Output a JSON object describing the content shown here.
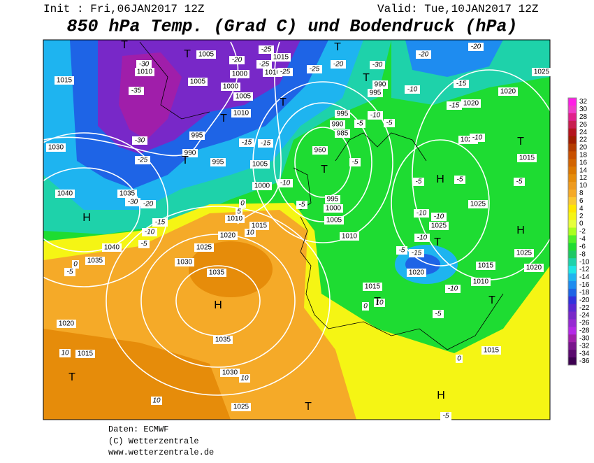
{
  "header": {
    "init": "Init : Fri,06JAN2017 12Z",
    "valid": "Valid: Tue,10JAN2017 12Z",
    "title": "850 hPa Temp. (Grad C) und Bodendruck (hPa)"
  },
  "colorbar": {
    "ticks": [
      32,
      30,
      28,
      26,
      24,
      22,
      20,
      18,
      16,
      14,
      12,
      10,
      8,
      6,
      4,
      2,
      0,
      -2,
      -4,
      -6,
      -8,
      -10,
      -12,
      -14,
      -16,
      -18,
      -20,
      -22,
      -24,
      -26,
      -28,
      -30,
      -32,
      -34,
      -36
    ],
    "colors": [
      "#ff1ee6",
      "#f03cc8",
      "#e0208c",
      "#c81e50",
      "#b4141e",
      "#a01e00",
      "#b43c00",
      "#c85000",
      "#d26400",
      "#dc7800",
      "#e68c0a",
      "#ee9a1e",
      "#f5aa28",
      "#fac832",
      "#ffe600",
      "#f5f514",
      "#e6ff3c",
      "#aaff1e",
      "#50f028",
      "#1edc32",
      "#1ec864",
      "#1ed2aa",
      "#1ee6e6",
      "#1eb4f0",
      "#1e8cf0",
      "#1e64e6",
      "#3232dc",
      "#5a28d2",
      "#7828c8",
      "#962ad2",
      "#b428e6",
      "#a01eaa",
      "#78148c",
      "#5a0a6e",
      "#3c0050"
    ]
  },
  "map": {
    "pressure_labels": [
      1005,
      1015,
      1010,
      1015,
      1005,
      1010,
      1000,
      1000,
      1005,
      995,
      990,
      1010,
      995,
      990,
      995,
      1005,
      1000,
      1030,
      1040,
      1035,
      1040,
      1035,
      1030,
      1025,
      1020,
      1010,
      1015,
      995,
      990,
      985,
      960,
      995,
      1000,
      1005,
      1010,
      1025,
      1025,
      1025,
      1020,
      1020,
      1020,
      1015,
      1010,
      1015,
      1015,
      1025,
      1020,
      1035,
      1035,
      1030,
      1025,
      1020,
      1015,
      1015,
      1025
    ],
    "temp_labels": [
      -30,
      -35,
      -30,
      -25,
      -30,
      -20,
      -15,
      -10,
      -5,
      0,
      -5,
      0,
      5,
      -20,
      -25,
      -25,
      -25,
      -25,
      -20,
      -30,
      -10,
      -20,
      -20,
      -15,
      -15,
      -10,
      -10,
      -5,
      -5,
      -5,
      -5,
      -10,
      -15,
      -15,
      -10,
      -10,
      -10,
      -15,
      -5,
      -10,
      -5,
      -5,
      -5,
      -5,
      10,
      10,
      10,
      10,
      0,
      0,
      -5,
      10
    ],
    "centers": [
      "H",
      "H",
      "H",
      "H",
      "H",
      "T",
      "T",
      "T",
      "T",
      "T",
      "T",
      "T",
      "T",
      "T",
      "T",
      "T",
      "T",
      "T",
      "T"
    ]
  },
  "footer": {
    "lines": [
      "Daten: ECMWF",
      "(C) Wetterzentrale",
      "www.wetterzentrale.de"
    ]
  }
}
